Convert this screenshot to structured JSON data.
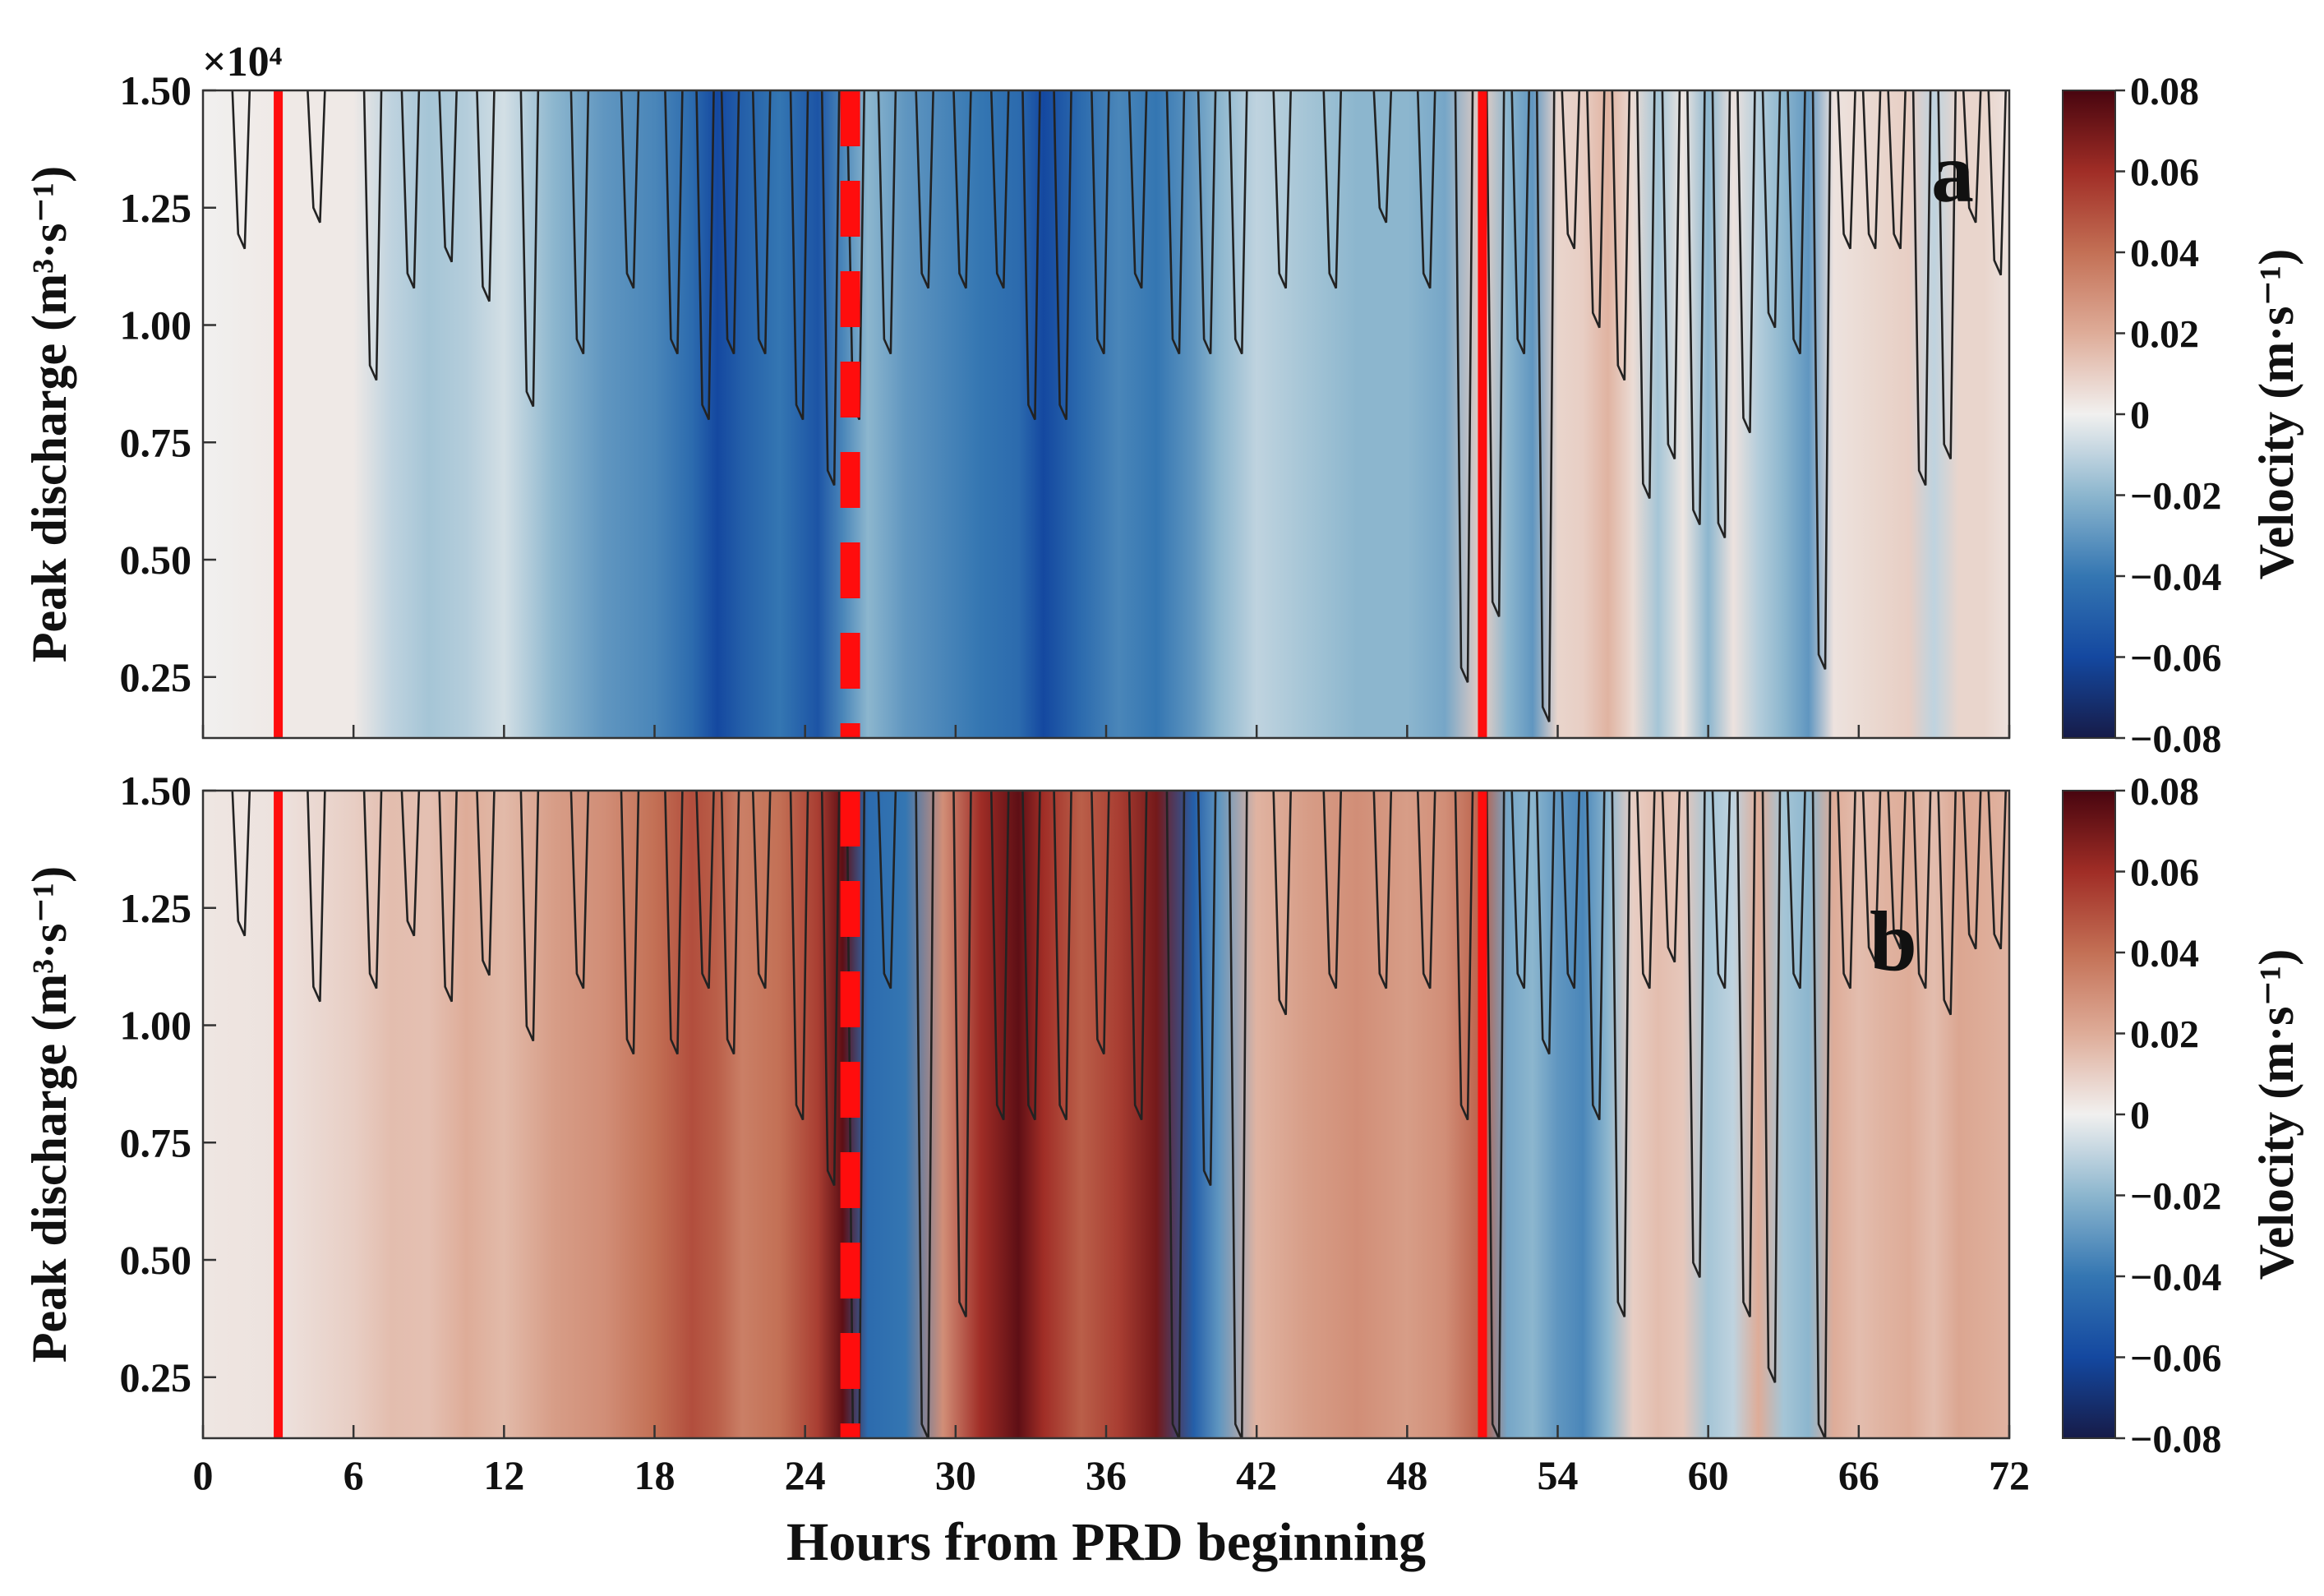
{
  "chart_data": [
    {
      "type": "heatmap",
      "panel_label": "a",
      "x": {
        "label": "Hours from PRD beginning",
        "lim": [
          0,
          72
        ],
        "ticks": [
          "0",
          "6",
          "12",
          "18",
          "24",
          "30",
          "36",
          "42",
          "48",
          "54",
          "60",
          "66",
          "72"
        ]
      },
      "y": {
        "label": "Peak discharge (m³·s⁻¹)",
        "lim": [
          0.12,
          1.5
        ],
        "ticks": [
          "0.25",
          "0.50",
          "0.75",
          "1.00",
          "1.25",
          "1.50"
        ],
        "multiplier": "×10⁴"
      },
      "colorbar": {
        "label": "Velocity (m·s⁻¹)",
        "lim": [
          -0.08,
          0.08
        ],
        "ticks": [
          "0.08",
          "0.06",
          "0.04",
          "0.02",
          "0",
          "−0.02",
          "−0.04",
          "−0.06",
          "−0.08"
        ]
      },
      "markers": {
        "solid_lines_hours": [
          3,
          51
        ],
        "dashed_line_hours": [
          25.8
        ]
      },
      "field": {
        "hours": [
          0,
          3,
          6,
          7.5,
          9,
          10.5,
          12,
          14,
          16,
          18,
          19.5,
          20.5,
          21.5,
          23,
          24.5,
          25.5,
          26.5,
          28,
          29.5,
          31,
          32.5,
          33.5,
          35,
          36.5,
          38,
          39.5,
          40.5,
          42,
          44,
          46,
          48,
          49.5,
          51,
          52,
          53,
          54,
          55,
          56,
          57,
          58,
          59,
          60,
          61,
          62,
          63,
          64,
          65,
          66,
          67,
          68,
          69,
          70,
          71,
          72
        ],
        "velocity": [
          0,
          0.002,
          0.002,
          -0.01,
          -0.015,
          -0.012,
          -0.006,
          -0.02,
          -0.03,
          -0.035,
          -0.045,
          -0.06,
          -0.05,
          -0.04,
          -0.055,
          -0.035,
          -0.02,
          -0.03,
          -0.035,
          -0.04,
          -0.045,
          -0.06,
          -0.045,
          -0.035,
          -0.04,
          -0.03,
          -0.02,
          -0.01,
          -0.015,
          -0.02,
          -0.02,
          -0.025,
          0.01,
          -0.02,
          -0.03,
          0.008,
          0.01,
          0.018,
          0.006,
          -0.015,
          0.003,
          -0.02,
          0.004,
          -0.012,
          -0.02,
          -0.03,
          0.004,
          0.006,
          0.008,
          0.01,
          -0.01,
          0.008,
          0.008,
          0.004
        ]
      }
    },
    {
      "type": "heatmap",
      "panel_label": "b",
      "x": {
        "label": "Hours from PRD beginning",
        "lim": [
          0,
          72
        ],
        "ticks": [
          "0",
          "6",
          "12",
          "18",
          "24",
          "30",
          "36",
          "42",
          "48",
          "54",
          "60",
          "66",
          "72"
        ]
      },
      "y": {
        "label": "Peak discharge (m³·s⁻¹)",
        "lim": [
          0.12,
          1.5
        ],
        "ticks": [
          "0.25",
          "0.50",
          "0.75",
          "1.00",
          "1.25",
          "1.50"
        ]
      },
      "colorbar": {
        "label": "Velocity (m·s⁻¹)",
        "lim": [
          -0.08,
          0.08
        ],
        "ticks": [
          "0.08",
          "0.06",
          "0.04",
          "0.02",
          "0",
          "−0.02",
          "−0.04",
          "−0.06",
          "−0.08"
        ]
      },
      "markers": {
        "solid_lines_hours": [
          3,
          51
        ],
        "dashed_line_hours": [
          25.8
        ]
      },
      "field": {
        "hours": [
          0,
          3,
          6,
          7.5,
          9,
          10.5,
          12,
          14,
          16,
          18,
          19.5,
          20.5,
          21.5,
          23,
          24.5,
          25.5,
          26.5,
          28,
          29.5,
          31,
          32.5,
          33.5,
          35,
          36.5,
          38,
          39.5,
          40.5,
          42,
          44,
          46,
          48,
          49.5,
          51,
          52,
          53,
          54,
          55,
          56,
          57,
          58,
          59,
          60,
          61,
          62,
          63,
          64,
          65,
          66,
          67,
          68,
          69,
          70,
          71,
          72
        ],
        "velocity": [
          0.003,
          0.004,
          0.01,
          0.015,
          0.014,
          0.02,
          0.016,
          0.025,
          0.03,
          0.04,
          0.05,
          0.045,
          0.035,
          0.04,
          0.055,
          0.075,
          -0.045,
          -0.04,
          0.03,
          0.06,
          0.075,
          0.06,
          0.045,
          0.055,
          0.07,
          -0.05,
          -0.03,
          0.018,
          0.025,
          0.03,
          0.025,
          0.03,
          0.045,
          -0.025,
          -0.02,
          -0.03,
          -0.035,
          -0.02,
          0.01,
          0.015,
          0.012,
          -0.015,
          -0.01,
          0.02,
          -0.015,
          -0.02,
          0.02,
          0.015,
          0.018,
          0.02,
          0.015,
          0.022,
          0.02,
          0.018
        ]
      }
    }
  ]
}
